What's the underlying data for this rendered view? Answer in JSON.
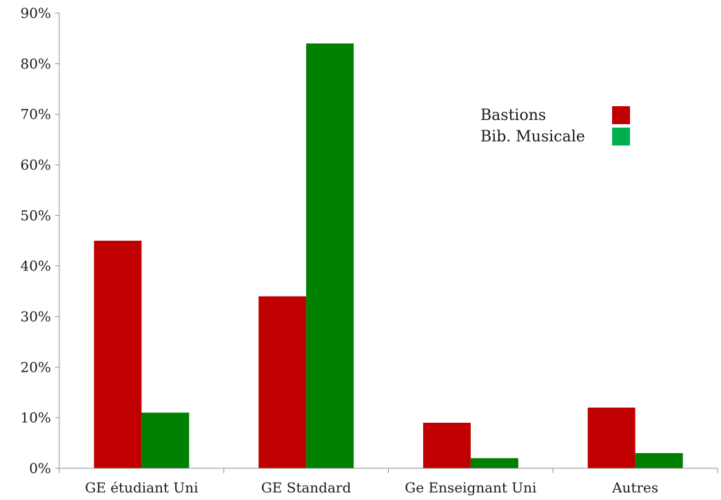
{
  "chart_data": {
    "type": "bar",
    "title": "",
    "xlabel": "",
    "ylabel": "",
    "categories": [
      "GE étudiant Uni",
      "GE Standard",
      "Ge Enseignant Uni",
      "Autres"
    ],
    "series": [
      {
        "name": "Bastions",
        "color": "#c00000",
        "legend_swatch_color": "#c00000",
        "values": [
          45,
          34,
          9,
          12
        ]
      },
      {
        "name": "Bib. Musicale",
        "color": "#008000",
        "legend_swatch_color": "#00b050",
        "values": [
          11,
          84,
          2,
          3
        ]
      }
    ],
    "ylim": [
      0,
      90
    ],
    "yticks": [
      "0%",
      "10%",
      "20%",
      "30%",
      "40%",
      "50%",
      "60%",
      "70%",
      "80%",
      "90%"
    ],
    "ytick_values": [
      0,
      10,
      20,
      30,
      40,
      50,
      60,
      70,
      80,
      90
    ],
    "grid": false,
    "legend_position": "top-right"
  }
}
